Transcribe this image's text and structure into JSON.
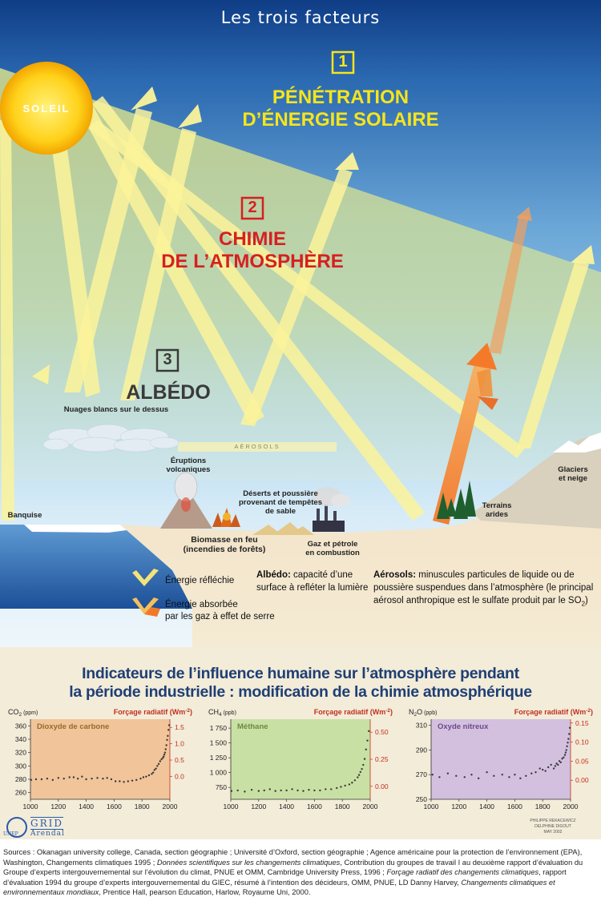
{
  "header": {
    "title": "Les trois facteurs"
  },
  "sun": {
    "label": "SOLEIL"
  },
  "factors": [
    {
      "number": "1",
      "line1": "PÉNÉTRATION",
      "line2": "D’ÉNERGIE SOLAIRE",
      "color": "#f5e51b"
    },
    {
      "number": "2",
      "line1": "CHIMIE",
      "line2": "DE L’ATMOSPHÈRE",
      "color": "#d62020"
    },
    {
      "number": "3",
      "line1": "ALBÉDO",
      "color": "#3a3a3a"
    }
  ],
  "labels": {
    "clouds": "Nuages blancs sur le dessus",
    "aerosols": "AÉROSOLS",
    "eruptions": [
      "Éruptions",
      "volcaniques"
    ],
    "banquise": "Banquise",
    "deserts": [
      "Déserts et poussière",
      "provenant de tempêtes",
      "de sable"
    ],
    "biomass": [
      "Biomasse en feu",
      "(incendies de forêts)"
    ],
    "gas": [
      "Gaz et pétrole",
      "en combustion"
    ],
    "arid": [
      "Terrains",
      "arides"
    ],
    "glaciers": [
      "Glaciers",
      "et neige"
    ]
  },
  "legend": {
    "reflected": "Énergie réfléchie",
    "absorbed": [
      "Énergie absorbée",
      "par les gaz à effet de serre"
    ],
    "albedo_term": "Albédo:",
    "albedo_def": [
      "capacité d’une",
      "surface à refléter la lumière"
    ],
    "aerosol_term": "Aérosols:",
    "aerosol_def": [
      "minuscules particules de liquide ou de",
      "poussière suspendues dans l’atmosphère (le principal",
      "aérosol anthropique est le sulfate produit par le SO"
    ],
    "so2_sub": "2",
    "close_paren": ")"
  },
  "indicators": {
    "title_line1": "Indicateurs de l’influence humaine sur l’atmosphère pendant",
    "title_line2": "la période industrielle : modification de la chimie atmosphérique"
  },
  "chart_data": [
    {
      "type": "scatter",
      "title": "Dioxyde de carbone",
      "ylabel": "CO2 (ppm)",
      "ylabel_main": "CO",
      "ylabel_sub": "2",
      "ylabel_unit": "(ppm)",
      "y2label": "Forçage radiatif (Wm",
      "y2label_sup": "-2",
      "y2label_end": ")",
      "xlim": [
        1000,
        2000
      ],
      "ylim": [
        250,
        370
      ],
      "y2lim": [
        -0.7,
        1.75
      ],
      "x_ticks": [
        1000,
        1200,
        1400,
        1600,
        1800,
        2000
      ],
      "y_ticks": [
        260,
        280,
        300,
        320,
        340,
        360
      ],
      "y2_ticks": [
        0.0,
        0.5,
        1.0,
        1.5
      ],
      "y2_tick_labels": [
        "0.0",
        "0.5",
        "1.0",
        "1.5"
      ],
      "background": "#f1c49a",
      "title_color": "#9a6a2a",
      "x": [
        1005,
        1040,
        1080,
        1120,
        1160,
        1200,
        1240,
        1280,
        1310,
        1340,
        1370,
        1400,
        1440,
        1480,
        1520,
        1550,
        1580,
        1610,
        1640,
        1670,
        1700,
        1730,
        1760,
        1790,
        1810,
        1830,
        1850,
        1870,
        1880,
        1890,
        1900,
        1910,
        1920,
        1930,
        1940,
        1950,
        1955,
        1960,
        1965,
        1970,
        1975,
        1980,
        1985,
        1990,
        1995
      ],
      "y": [
        279,
        280,
        280,
        281,
        279,
        282,
        281,
        283,
        283,
        281,
        284,
        280,
        281,
        282,
        281,
        282,
        280,
        277,
        277,
        276,
        277,
        278,
        279,
        281,
        283,
        284,
        286,
        288,
        290,
        294,
        296,
        300,
        303,
        307,
        310,
        312,
        314,
        317,
        320,
        325,
        331,
        339,
        345,
        354,
        361
      ]
    },
    {
      "type": "scatter",
      "title": "Méthane",
      "ylabel_main": "CH",
      "ylabel_sub": "4",
      "ylabel_unit": "(ppb)",
      "y2label": "Forçage radiatif (Wm",
      "y2label_sup": "-2",
      "y2label_end": ")",
      "xlim": [
        1000,
        2000
      ],
      "ylim": [
        550,
        1900
      ],
      "y2lim": [
        -0.12,
        0.62
      ],
      "x_ticks": [
        1000,
        1200,
        1400,
        1600,
        1800,
        2000
      ],
      "y_ticks": [
        750,
        1000,
        1250,
        1500,
        1750
      ],
      "y_tick_labels": [
        "750",
        "1 000",
        "1 250",
        "1 500",
        "1 750"
      ],
      "y2_ticks": [
        0.0,
        0.25,
        0.5
      ],
      "y2_tick_labels": [
        "0.00",
        "0.25",
        "0.50"
      ],
      "background": "#c9e0a4",
      "title_color": "#6a8a40",
      "x": [
        1005,
        1050,
        1100,
        1150,
        1200,
        1240,
        1280,
        1320,
        1360,
        1400,
        1440,
        1480,
        1520,
        1560,
        1600,
        1640,
        1680,
        1720,
        1760,
        1790,
        1820,
        1850,
        1870,
        1890,
        1910,
        1920,
        1930,
        1940,
        1950,
        1960,
        1970,
        1980,
        1990
      ],
      "y": [
        690,
        700,
        680,
        710,
        690,
        700,
        720,
        690,
        700,
        700,
        720,
        700,
        690,
        710,
        700,
        700,
        720,
        720,
        740,
        760,
        780,
        800,
        830,
        870,
        920,
        960,
        1010,
        1060,
        1130,
        1230,
        1390,
        1540,
        1700
      ]
    },
    {
      "type": "scatter",
      "title": "Oxyde nitreux",
      "ylabel_main": "N",
      "ylabel_sub": "2",
      "ylabel_end": "O",
      "ylabel_unit": "(ppb)",
      "y2label": "Forçage radiatif (Wm",
      "y2label_sup": "-2",
      "y2label_end": ")",
      "xlim": [
        1000,
        2000
      ],
      "ylim": [
        250,
        315
      ],
      "y2lim": [
        -0.05,
        0.16
      ],
      "x_ticks": [
        1000,
        1200,
        1400,
        1600,
        1800,
        2000
      ],
      "y_ticks": [
        250,
        270,
        290,
        310
      ],
      "y2_ticks": [
        0.0,
        0.05,
        0.1,
        0.15
      ],
      "y2_tick_labels": [
        "0.00",
        "0.05",
        "0.10",
        "0.15"
      ],
      "background": "#d3c0df",
      "title_color": "#6b4a8a",
      "x": [
        1010,
        1060,
        1120,
        1180,
        1240,
        1290,
        1340,
        1400,
        1450,
        1510,
        1560,
        1600,
        1640,
        1680,
        1720,
        1750,
        1780,
        1800,
        1820,
        1840,
        1860,
        1880,
        1890,
        1900,
        1910,
        1920,
        1930,
        1940,
        1950,
        1960,
        1965,
        1970,
        1975,
        1980,
        1985,
        1990,
        1995
      ],
      "y": [
        270,
        268,
        271,
        269,
        268,
        270,
        267,
        272,
        269,
        270,
        268,
        270,
        267,
        269,
        271,
        272,
        275,
        274,
        273,
        276,
        278,
        275,
        277,
        279,
        278,
        281,
        280,
        283,
        284,
        286,
        288,
        290,
        293,
        296,
        299,
        303,
        308
      ]
    }
  ],
  "logos": {
    "unep": "UNEP",
    "grid": "GRID",
    "arendal": "Arendal"
  },
  "credit": [
    "PHILIPPE REKACEWICZ",
    "DELPHINE DIGOUT",
    "MAY 2002"
  ],
  "sources": {
    "p1": "Sources : Okanagan university college, Canada, section géographie ; Université d’Oxford, section géographie ; Agence américaine pour la protection de l’environnement (EPA), Washington, Changements climatiques 1995 ; ",
    "i1": "Données scientifiques sur les changements climatiques",
    "p2": ", Contribution du groupes de travail I au deuxième rapport d’évaluation du Groupe d’experts intergouvernemental sur l’évolution du climat, PNUE et OMM, Cambridge University Press, 1996 ; ",
    "i2": "Forçage radiatif des changements climatiques",
    "p3": ", rapport d’évaluation 1994 du groupe d’experts intergouvernemental du GIEC, résumé à l’intention des décideurs, OMM, PNUE, LD Danny Harvey, ",
    "i3": "Changements climatiques et environnementaux mondiaux",
    "p4": ", Prentice Hall, pearson Education, Harlow, Royaume Uni, 2000."
  }
}
